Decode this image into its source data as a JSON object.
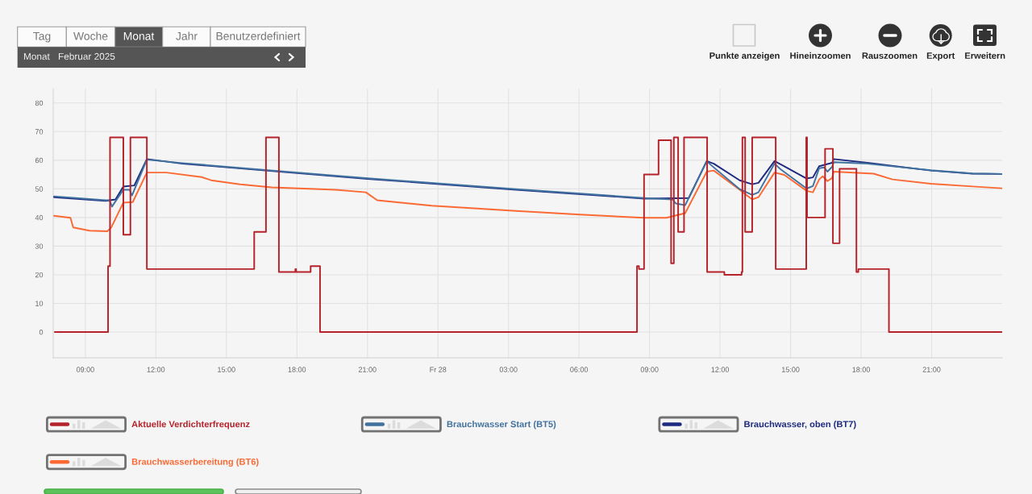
{
  "chart_data": {
    "type": "line",
    "annotations": [
      "Tag",
      "Woche",
      "Monat",
      "Jahr",
      "Benutzerdefiniert",
      "Monat",
      "Februar 2025",
      "Punkte anzeigen",
      "Hineinzoomen",
      "Rauszoomen",
      "Export",
      "Erweitern"
    ],
    "xlim": [
      "2025-02-27T07:38",
      "2025-03-01T00:00"
    ],
    "ylim": [
      -9,
      85
    ],
    "xticks": [
      {
        "value": "2025-02-27T09:00",
        "label": "09:00"
      },
      {
        "value": "2025-02-27T12:00",
        "label": "12:00"
      },
      {
        "value": "2025-02-27T15:00",
        "label": "15:00"
      },
      {
        "value": "2025-02-27T18:00",
        "label": "18:00"
      },
      {
        "value": "2025-02-27T21:00",
        "label": "21:00"
      },
      {
        "value": "2025-02-28T00:00",
        "label": "Fr 28"
      },
      {
        "value": "2025-02-28T03:00",
        "label": "03:00"
      },
      {
        "value": "2025-02-28T06:00",
        "label": "06:00"
      },
      {
        "value": "2025-02-28T09:00",
        "label": "09:00"
      },
      {
        "value": "2025-02-28T12:00",
        "label": "12:00"
      },
      {
        "value": "2025-02-28T15:00",
        "label": "15:00"
      },
      {
        "value": "2025-02-28T18:00",
        "label": "18:00"
      },
      {
        "value": "2025-02-28T21:00",
        "label": "21:00"
      }
    ],
    "yticks": [
      0,
      10,
      20,
      30,
      40,
      50,
      60,
      70,
      80
    ],
    "grid": true,
    "legend": "bottom",
    "series": [
      {
        "name": "Aktuelle Verdichterfrequenz",
        "type": "step",
        "color": "#b5222a",
        "x": [
          "2025-02-27T07:42",
          "2025-02-27T09:58",
          "2025-02-27T10:03",
          "2025-02-27T10:37",
          "2025-02-27T10:55",
          "2025-02-27T11:37",
          "2025-02-27T16:11",
          "2025-02-27T16:41",
          "2025-02-27T17:14",
          "2025-02-27T17:56",
          "2025-02-27T17:58",
          "2025-02-27T18:35",
          "2025-02-27T18:59",
          "2025-02-28T08:28",
          "2025-02-28T08:33",
          "2025-02-28T08:46",
          "2025-02-28T09:23",
          "2025-02-28T09:55",
          "2025-02-28T10:02",
          "2025-02-28T10:13",
          "2025-02-28T10:28",
          "2025-02-28T11:27",
          "2025-02-28T12:11",
          "2025-02-28T12:55",
          "2025-02-28T12:57",
          "2025-02-28T13:04",
          "2025-02-28T13:22",
          "2025-02-28T14:22",
          "2025-02-28T15:40",
          "2025-02-28T15:42",
          "2025-02-28T16:28",
          "2025-02-28T16:48",
          "2025-02-28T17:05",
          "2025-02-28T17:48",
          "2025-02-28T17:53",
          "2025-02-28T19:11",
          "2025-02-28T23:59"
        ],
        "values": [
          0,
          23,
          68,
          34,
          68,
          22,
          35,
          68,
          21,
          22,
          21,
          23,
          0,
          23,
          22,
          55,
          67,
          24,
          68,
          35,
          68,
          21,
          20,
          21,
          68,
          35,
          68,
          22,
          68,
          40,
          64,
          31,
          57,
          21,
          22,
          0,
          0
        ]
      },
      {
        "name": "Brauchwasser Start (BT5)",
        "color": "#41729f",
        "x": [
          "2025-02-27T07:40",
          "2025-02-27T09:52",
          "2025-02-27T10:02",
          "2025-02-27T10:08",
          "2025-02-27T10:37",
          "2025-02-27T10:53",
          "2025-02-27T10:59",
          "2025-02-27T11:37",
          "2025-02-27T13:08",
          "2025-02-27T16:40",
          "2025-02-27T21:01",
          "2025-02-28T03:20",
          "2025-02-28T08:46",
          "2025-02-28T09:59",
          "2025-02-28T10:07",
          "2025-02-28T10:31",
          "2025-02-28T11:26",
          "2025-02-28T11:37",
          "2025-02-28T12:50",
          "2025-02-28T13:22",
          "2025-02-28T13:38",
          "2025-02-28T14:19",
          "2025-02-28T14:35",
          "2025-02-28T15:41",
          "2025-02-28T15:57",
          "2025-02-28T16:13",
          "2025-02-28T16:26",
          "2025-02-28T16:34",
          "2025-02-28T16:46",
          "2025-02-28T16:50",
          "2025-02-28T18:16",
          "2025-02-28T20:58",
          "2025-02-28T22:44",
          "2025-02-28T23:59"
        ],
        "values": [
          47.4,
          46.0,
          46.0,
          43.8,
          49.7,
          49.7,
          47.7,
          60.2,
          59.0,
          56.6,
          53.7,
          49.9,
          46.8,
          46.3,
          44.9,
          44.3,
          59.7,
          58.3,
          49.9,
          47.9,
          48.8,
          58.8,
          56.8,
          50.1,
          51.0,
          57.2,
          57.5,
          56.0,
          57.7,
          59.3,
          58.8,
          56.5,
          55.4,
          55.2
        ]
      },
      {
        "name": "Brauchwasser, oben (BT7)",
        "color": "#1c2a80",
        "x": [
          "2025-02-27T07:40",
          "2025-02-27T09:52",
          "2025-02-27T10:17",
          "2025-02-27T10:37",
          "2025-02-27T11:05",
          "2025-02-27T11:37",
          "2025-02-27T13:08",
          "2025-02-27T16:40",
          "2025-02-27T21:01",
          "2025-02-28T03:20",
          "2025-02-28T08:46",
          "2025-02-28T10:40",
          "2025-02-28T11:26",
          "2025-02-28T11:44",
          "2025-02-28T12:50",
          "2025-02-28T13:22",
          "2025-02-28T13:38",
          "2025-02-28T14:19",
          "2025-02-28T14:44",
          "2025-02-28T15:41",
          "2025-02-28T15:57",
          "2025-02-28T16:13",
          "2025-02-28T16:46",
          "2025-02-28T16:50",
          "2025-02-28T18:16",
          "2025-02-28T20:58",
          "2025-02-28T22:44",
          "2025-02-28T23:59"
        ],
        "values": [
          47.1,
          45.8,
          46.3,
          50.8,
          51.2,
          60.4,
          58.8,
          56.4,
          53.5,
          49.7,
          46.6,
          46.8,
          59.7,
          58.8,
          53.0,
          51.6,
          52.1,
          59.7,
          57.9,
          53.6,
          54.0,
          57.9,
          59.1,
          60.4,
          59.1,
          56.4,
          55.3,
          55.2
        ]
      },
      {
        "name": "Brauchwasserbereitung (BT6)",
        "color": "#fb6a35",
        "x": [
          "2025-02-27T07:40",
          "2025-02-27T08:22",
          "2025-02-27T08:29",
          "2025-02-27T09:11",
          "2025-02-27T09:56",
          "2025-02-27T10:06",
          "2025-02-27T10:37",
          "2025-02-27T11:01",
          "2025-02-27T11:37",
          "2025-02-27T12:27",
          "2025-02-27T13:57",
          "2025-02-27T14:21",
          "2025-02-27T15:35",
          "2025-02-27T16:56",
          "2025-02-27T19:39",
          "2025-02-27T20:56",
          "2025-02-27T21:25",
          "2025-02-27T23:44",
          "2025-02-28T03:20",
          "2025-02-28T06:02",
          "2025-02-28T08:46",
          "2025-02-28T09:43",
          "2025-02-28T10:31",
          "2025-02-28T11:26",
          "2025-02-28T11:44",
          "2025-02-28T12:50",
          "2025-02-28T13:22",
          "2025-02-28T13:38",
          "2025-02-28T14:19",
          "2025-02-28T14:44",
          "2025-02-28T15:41",
          "2025-02-28T15:57",
          "2025-02-28T16:13",
          "2025-02-28T16:22",
          "2025-02-28T16:34",
          "2025-02-28T16:46",
          "2025-02-28T16:50",
          "2025-02-28T18:32",
          "2025-02-28T19:20",
          "2025-02-28T20:58",
          "2025-02-28T23:01",
          "2025-02-28T23:59"
        ],
        "values": [
          40.6,
          39.9,
          36.5,
          35.4,
          35.2,
          36.5,
          45.2,
          45.4,
          55.7,
          55.7,
          54.1,
          53.0,
          51.6,
          50.5,
          49.7,
          48.8,
          46.0,
          44.1,
          42.3,
          41.0,
          39.9,
          39.9,
          41.5,
          56.0,
          56.4,
          49.7,
          46.3,
          47.1,
          55.7,
          54.9,
          49.3,
          48.8,
          53.3,
          54.4,
          52.7,
          53.8,
          56.0,
          55.3,
          53.3,
          51.8,
          50.7,
          50.2
        ]
      }
    ]
  }
}
